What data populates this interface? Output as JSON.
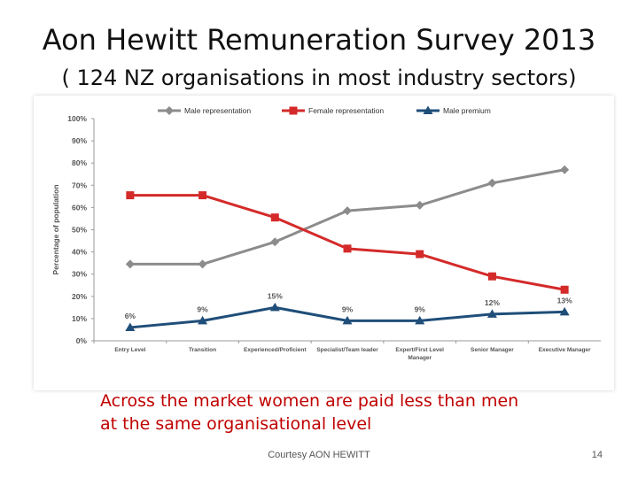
{
  "slide": {
    "title": "Aon Hewitt Remuneration Survey 2013",
    "subtitle": "( 124 NZ organisations in most industry sectors)",
    "caption_line1": "Across the market women are paid less than men",
    "caption_line2": "at the same organisational level",
    "credit": "Courtesy AON HEWITT",
    "page_number": "14"
  },
  "chart_data": {
    "type": "line",
    "title": "",
    "xlabel": "",
    "ylabel": "Percentage of population",
    "ylim": [
      0,
      100
    ],
    "yticks": [
      "0%",
      "10%",
      "20%",
      "30%",
      "40%",
      "50%",
      "60%",
      "70%",
      "80%",
      "90%",
      "100%"
    ],
    "grid": false,
    "legend_position": "top",
    "categories": [
      [
        "Entry Level"
      ],
      [
        "Transition"
      ],
      [
        "Experienced/Proficient"
      ],
      [
        "Specialist/Team leader"
      ],
      [
        "Expert/First Level",
        "Manager"
      ],
      [
        "Senior Manager"
      ],
      [
        "Executive Manager"
      ]
    ],
    "series": [
      {
        "name": "Male representation",
        "color": "#8c8c8c",
        "marker": "diamond",
        "values": [
          34.5,
          34.5,
          44.5,
          58.5,
          61,
          71,
          77
        ]
      },
      {
        "name": "Female representation",
        "color": "#d42a2a",
        "marker": "square",
        "values": [
          65.5,
          65.5,
          55.5,
          41.5,
          39,
          29,
          23
        ]
      },
      {
        "name": "Male premium",
        "color": "#1f4e79",
        "marker": "triangle",
        "values": [
          6,
          9,
          15,
          9,
          9,
          12,
          13
        ],
        "labels": [
          "6%",
          "9%",
          "15%",
          "9%",
          "9%",
          "12%",
          "13%"
        ]
      }
    ]
  }
}
